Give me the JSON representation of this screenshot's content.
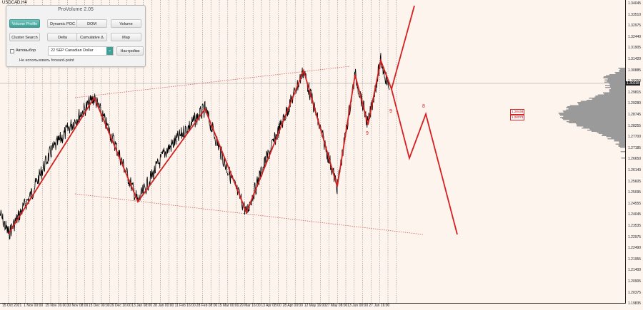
{
  "symbol": "USDCAD,H4",
  "current_price": "1.30238",
  "price_labels": [
    "1.34045",
    "1.33510",
    "1.32975",
    "1.32440",
    "1.31905",
    "1.31420",
    "1.30885",
    "1.30350",
    "1.29815",
    "1.29280",
    "1.28745",
    "1.28255",
    "1.27700",
    "1.27185",
    "1.26650",
    "1.26140",
    "1.25605",
    "1.25095",
    "1.24555",
    "1.24045",
    "1.23535",
    "1.22975",
    "1.22490",
    "1.21955",
    "1.21400",
    "1.20905",
    "1.20375",
    "1.19835"
  ],
  "time_labels": [
    "15 Oct 2021",
    "1 Nov 00:00",
    "15 Nov 16:00",
    "30 Nov 08:00",
    "15 Dec 00:00",
    "29 Dec 16:00",
    "13 Jan 08:00",
    "28 Jan 00:00",
    "11 Feb 16:00",
    "28 Feb 08:00",
    "15 Mar 00:00",
    "29 Mar 16:00",
    "13 Apr 08:00",
    "28 Apr 00:00",
    "12 May 16:00",
    "27 May 08:00",
    "13 Jun 00:00",
    "27 Jun 16:00"
  ],
  "level_tags": [
    "1.28448",
    "1.28373"
  ],
  "wave_labels": [
    "9",
    "9",
    "8"
  ],
  "panel": {
    "title": "ProVolume 2.05",
    "buttons": [
      "Volume Profile",
      "Dynamic POC",
      "DOM",
      "Volume",
      "Cluster Search",
      "Delta",
      "Cumulative Δ",
      "Map"
    ],
    "checkbox_label": "Автовыбор",
    "instrument": "22 SEP Canadian Dollar",
    "settings_label": "Настройки",
    "forward_point": "Не использовать forward-point"
  },
  "colors": {
    "background": "#fdf4ee",
    "zigzag": "#d42020",
    "price_line": "#000000",
    "active_button": "#3fa097"
  }
}
